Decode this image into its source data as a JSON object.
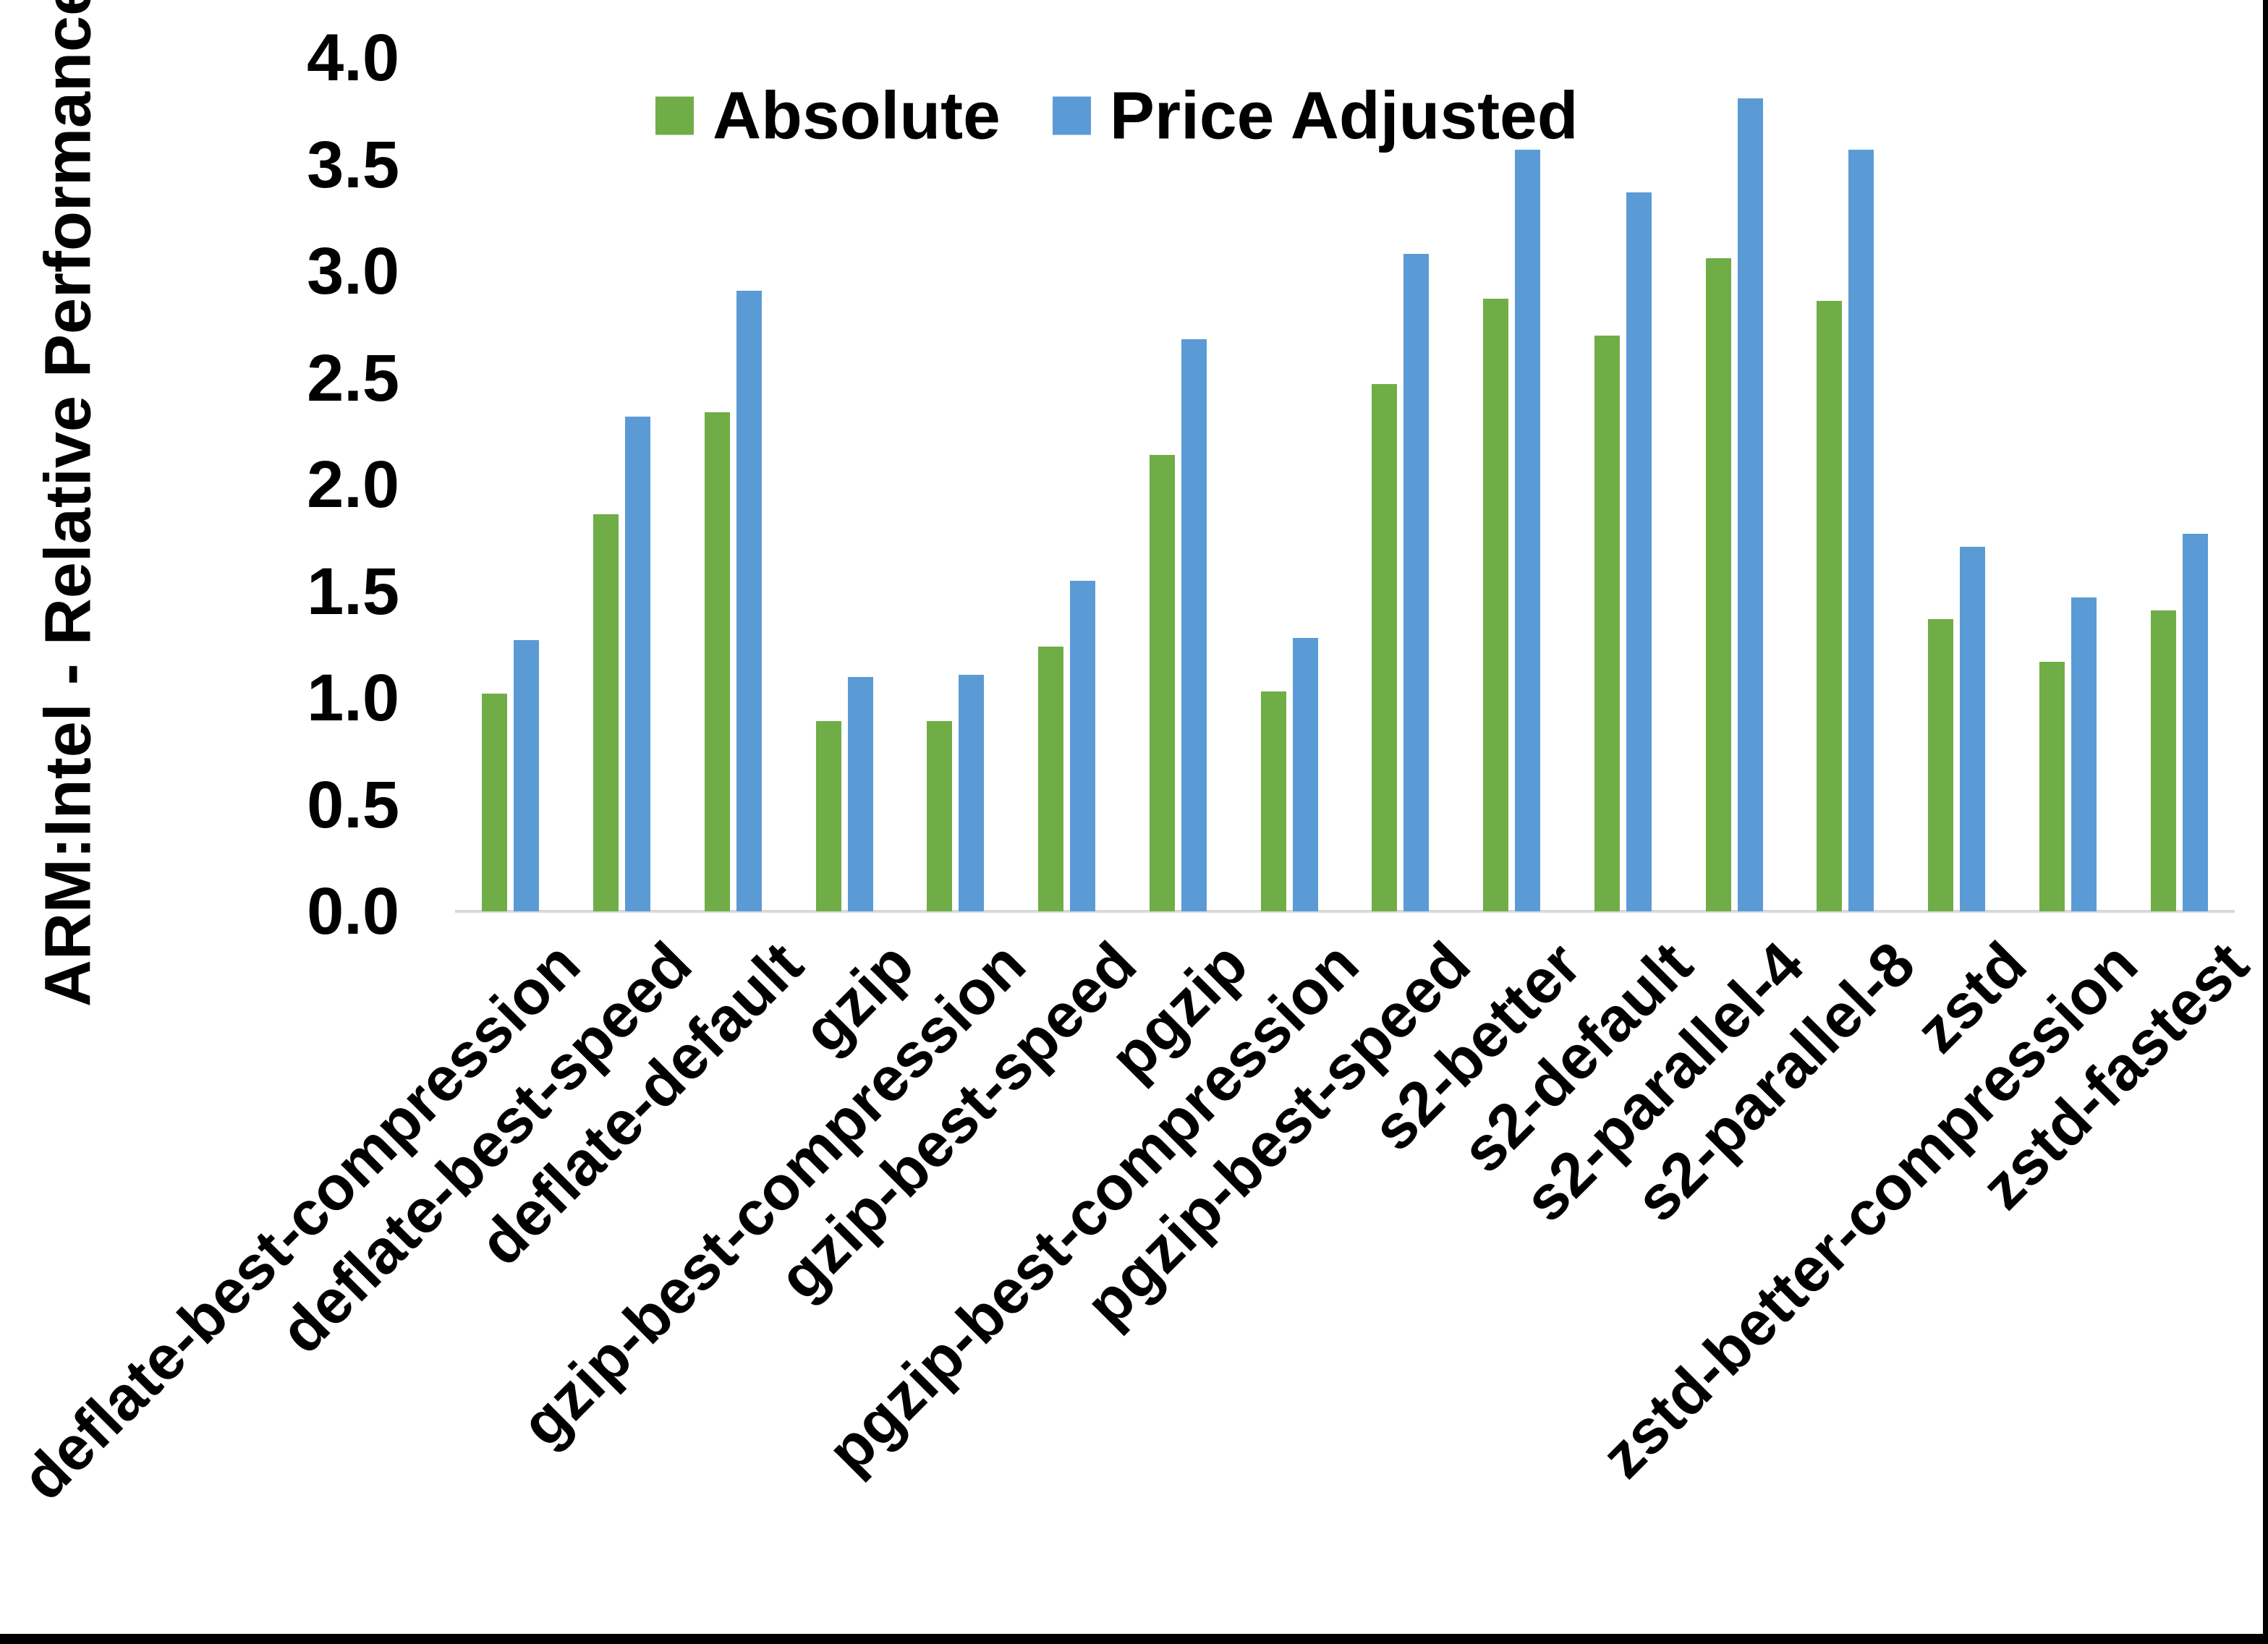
{
  "chart_data": {
    "type": "bar",
    "title": "",
    "xlabel": "",
    "ylabel": "ARM:Intel - Relative Performance",
    "ylim": [
      0.0,
      4.0
    ],
    "ytick_step": 0.5,
    "ytick_labels": [
      "0.0",
      "0.5",
      "1.0",
      "1.5",
      "2.0",
      "2.5",
      "3.0",
      "3.5",
      "4.0"
    ],
    "grid": false,
    "legend_position": "top-center",
    "categories": [
      "deflate-best-compression",
      "deflate-best-speed",
      "deflate-default",
      "gzip",
      "gzip-best-compression",
      "gzip-best-speed",
      "pgzip",
      "pgzip-best-compression",
      "pgzip-best-speed",
      "s2-better",
      "s2-default",
      "s2-parallel-4",
      "s2-parallel-8",
      "zstd",
      "zstd-better-compression",
      "zstd-fastest"
    ],
    "series": [
      {
        "name": "Absolute",
        "color": "#70AD47",
        "values": [
          1.02,
          1.86,
          2.34,
          0.89,
          0.89,
          1.24,
          2.14,
          1.03,
          2.47,
          2.87,
          2.7,
          3.06,
          2.86,
          1.37,
          1.17,
          1.41
        ]
      },
      {
        "name": "Price Adjusted",
        "color": "#5B9BD5",
        "values": [
          1.27,
          2.32,
          2.91,
          1.1,
          1.11,
          1.55,
          2.68,
          1.28,
          3.08,
          3.57,
          3.37,
          3.81,
          3.57,
          1.71,
          1.47,
          1.77
        ]
      }
    ],
    "colors": {
      "axis_line": "#D9D9D9",
      "text": "#000000",
      "edge_border": "#000000",
      "background": "#FFFFFF"
    }
  }
}
